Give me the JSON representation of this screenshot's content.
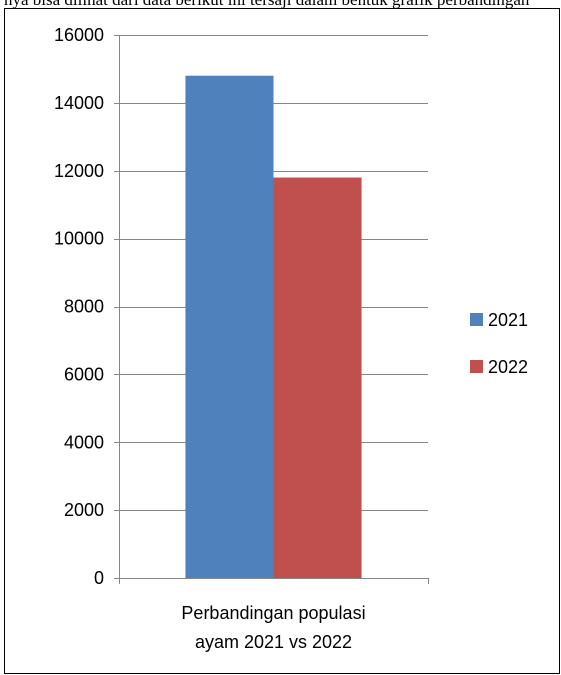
{
  "page": {
    "top_text": "nya bisa dilihat dari data berikut ini tersaji dalam bentuk grafik perbandingan"
  },
  "chart_data": {
    "type": "bar",
    "categories": [
      "Perbandingan populasi ayam 2021 vs 2022"
    ],
    "category_label_lines": [
      "Perbandingan populasi",
      "ayam 2021 vs 2022"
    ],
    "series": [
      {
        "name": "2021",
        "values": [
          14800
        ],
        "color": "#4F81BD"
      },
      {
        "name": "2022",
        "values": [
          11800
        ],
        "color": "#C0504D"
      }
    ],
    "yticks": [
      0,
      2000,
      4000,
      6000,
      8000,
      10000,
      12000,
      14000,
      16000
    ],
    "ylim": [
      0,
      16000
    ],
    "grid": true,
    "legend_position": "right",
    "title": "",
    "xlabel": "",
    "ylabel": "",
    "colors": {
      "grid": "#868686",
      "axis": "#868686"
    }
  }
}
